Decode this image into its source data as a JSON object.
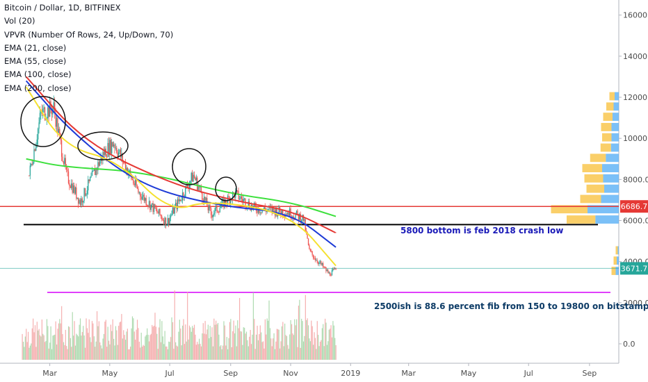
{
  "chart_data": {
    "type": "candlestick",
    "title": "Bitcoin / Dollar, 1D, BITFINEX",
    "indicators": [
      "Vol (20)",
      "VPVR (Number Of Rows, 24, Up/Down, 70)",
      "EMA (21, close)",
      "EMA (55, close)",
      "EMA (100, close)",
      "EMA (200, close)"
    ],
    "x_tick_labels": [
      "Mar",
      "May",
      "Jul",
      "Sep",
      "Nov",
      "2019",
      "Mar",
      "May",
      "Jul",
      "Sep"
    ],
    "y_tick_labels": [
      "16000.0",
      "14000.0",
      "12000.0",
      "10000.0",
      "8000.0",
      "6000.0",
      "4000.0",
      "2000.0",
      "0.0"
    ],
    "ylim": [
      -900,
      16700
    ],
    "price_close_points": [
      [
        "2018-02-08",
        8200
      ],
      [
        "2018-02-20",
        11200
      ],
      [
        "2018-03-05",
        11500
      ],
      [
        "2018-03-18",
        8200
      ],
      [
        "2018-04-01",
        6900
      ],
      [
        "2018-04-25",
        9300
      ],
      [
        "2018-05-05",
        9800
      ],
      [
        "2018-05-30",
        7400
      ],
      [
        "2018-06-28",
        5900
      ],
      [
        "2018-07-25",
        8200
      ],
      [
        "2018-08-12",
        6300
      ],
      [
        "2018-09-05",
        7300
      ],
      [
        "2018-09-25",
        6600
      ],
      [
        "2018-10-30",
        6400
      ],
      [
        "2018-11-14",
        6100
      ],
      [
        "2018-11-20",
        4500
      ],
      [
        "2018-12-10",
        3400
      ],
      [
        "2018-12-17",
        3600
      ]
    ],
    "ema_21": [
      [
        "2018-02-05",
        12500
      ],
      [
        "2018-03-15",
        9600
      ],
      [
        "2018-05-10",
        8900
      ],
      [
        "2018-07-01",
        6400
      ],
      [
        "2018-08-10",
        7000
      ],
      [
        "2018-11-01",
        6350
      ],
      [
        "2018-12-17",
        3800
      ]
    ],
    "ema_55": [
      [
        "2018-02-05",
        12800
      ],
      [
        "2018-03-25",
        10200
      ],
      [
        "2018-06-01",
        7700
      ],
      [
        "2018-08-20",
        6700
      ],
      [
        "2018-11-01",
        6400
      ],
      [
        "2018-12-17",
        4700
      ]
    ],
    "ema_100": [
      [
        "2018-02-05",
        13000
      ],
      [
        "2018-04-05",
        9800
      ],
      [
        "2018-07-01",
        7800
      ],
      [
        "2018-09-10",
        6900
      ],
      [
        "2018-11-01",
        6500
      ],
      [
        "2018-12-17",
        5400
      ]
    ],
    "ema_200": [
      [
        "2018-02-05",
        9000
      ],
      [
        "2018-03-15",
        8600
      ],
      [
        "2018-06-01",
        8400
      ],
      [
        "2018-09-01",
        7300
      ],
      [
        "2018-11-01",
        6900
      ],
      [
        "2018-12-17",
        6200
      ]
    ],
    "horizontal_lines": [
      {
        "price": 6686.7,
        "color": "#e53935"
      },
      {
        "price": 5800,
        "color": "#000000"
      },
      {
        "price": 2500,
        "color": "#e040fb"
      },
      {
        "price": 3671.7,
        "color": "#26a69a"
      }
    ],
    "price_labels": [
      {
        "text": "6686.7",
        "price": 6686.7,
        "bg": "#e53935"
      },
      {
        "text": "3671.7",
        "price": 3671.7,
        "bg": "#26a69a"
      }
    ],
    "annotations": [
      "5800 bottom is feb 2018 crash low",
      "2500ish is 88.6 percent fib from 150 to 19800 on bitstamp"
    ],
    "volume_profile_rows": [
      {
        "price": 12000,
        "up": 10,
        "down": 8
      },
      {
        "price": 11500,
        "up": 14,
        "down": 10
      },
      {
        "price": 11000,
        "up": 18,
        "down": 12
      },
      {
        "price": 10500,
        "up": 20,
        "down": 14
      },
      {
        "price": 10000,
        "up": 18,
        "down": 14
      },
      {
        "price": 9500,
        "up": 20,
        "down": 15
      },
      {
        "price": 9000,
        "up": 30,
        "down": 25
      },
      {
        "price": 8500,
        "up": 38,
        "down": 32
      },
      {
        "price": 8000,
        "up": 36,
        "down": 30
      },
      {
        "price": 7500,
        "up": 34,
        "down": 28
      },
      {
        "price": 7000,
        "up": 40,
        "down": 34
      },
      {
        "price": 6500,
        "up": 70,
        "down": 60
      },
      {
        "price": 6000,
        "up": 55,
        "down": 45
      },
      {
        "price": 4500,
        "up": 4,
        "down": 2
      },
      {
        "price": 4000,
        "up": 6,
        "down": 4
      },
      {
        "price": 3500,
        "up": 8,
        "down": 6
      }
    ],
    "colors": {
      "up": "#26a69a",
      "down": "#ef5350",
      "ema21": "#f5e12f",
      "ema55": "#1e3bd6",
      "ema100": "#e53935",
      "ema200": "#3ce03c",
      "annotation_blue": "#1a1ab8",
      "annotation_navy": "#0d3b66"
    }
  }
}
